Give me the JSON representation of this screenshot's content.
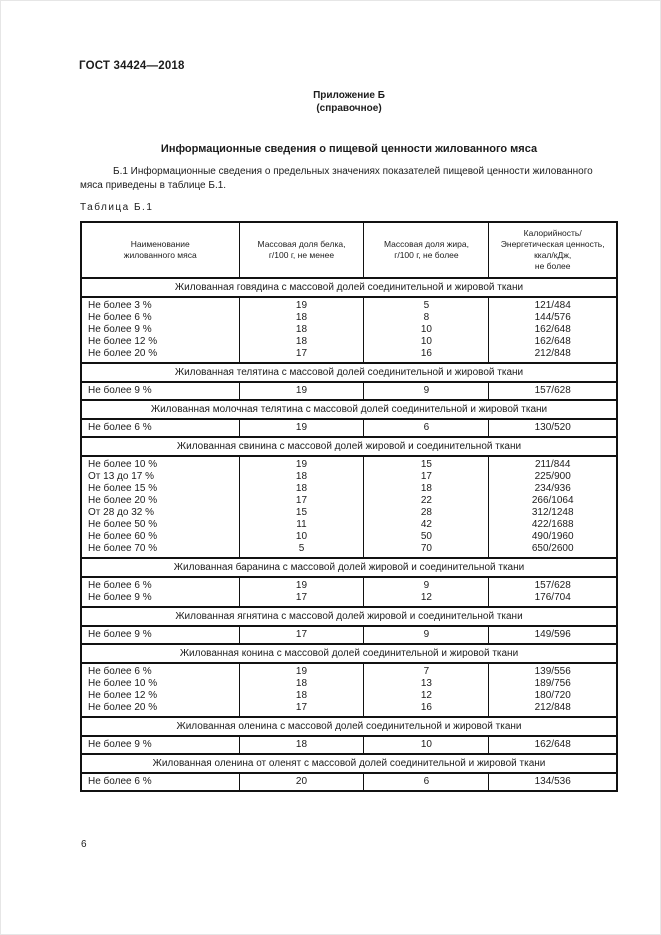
{
  "page": {
    "doc_code": "ГОСТ 34424—2018",
    "page_number": "6"
  },
  "appendix": {
    "title": "Приложение Б",
    "subtitle": "(справочное)"
  },
  "heading": "Информационные сведения о пищевой ценности жилованного мяса",
  "paragraph": "Б.1 Информационные сведения о предельных значениях показателей пищевой ценности жилованного мяса приведены в таблице Б.1.",
  "table": {
    "label": "Таблица Б.1",
    "columns": [
      "Наименование\nжилованного мяса",
      "Массовая доля белка,\nг/100 г, не менее",
      "Массовая доля жира,\nг/100 г, не более",
      "Калорийность/\nЭнергетическая ценность,\nккал/кДж,\nне более"
    ],
    "sections": [
      {
        "title": "Жилованная говядина с массовой долей соединительной и жировой ткани",
        "rows": [
          [
            "Не более 3 %",
            "19",
            "5",
            "121/484"
          ],
          [
            "Не более 6 %",
            "18",
            "8",
            "144/576"
          ],
          [
            "Не более 9 %",
            "18",
            "10",
            "162/648"
          ],
          [
            "Не более 12 %",
            "18",
            "10",
            "162/648"
          ],
          [
            "Не более 20 %",
            "17",
            "16",
            "212/848"
          ]
        ]
      },
      {
        "title": "Жилованная телятина с массовой долей соединительной и жировой ткани",
        "rows": [
          [
            "Не более 9 %",
            "19",
            "9",
            "157/628"
          ]
        ]
      },
      {
        "title": "Жилованная молочная телятина с массовой долей соединительной и жировой ткани",
        "rows": [
          [
            "Не более 6 %",
            "19",
            "6",
            "130/520"
          ]
        ]
      },
      {
        "title": "Жилованная свинина с массовой долей жировой и соединительной ткани",
        "rows": [
          [
            "Не более 10 %",
            "19",
            "15",
            "211/844"
          ],
          [
            "От 13 до 17 %",
            "18",
            "17",
            "225/900"
          ],
          [
            "Не более 15 %",
            "18",
            "18",
            "234/936"
          ],
          [
            "Не более 20 %",
            "17",
            "22",
            "266/1064"
          ],
          [
            "От 28 до 32 %",
            "15",
            "28",
            "312/1248"
          ],
          [
            "Не более 50 %",
            "11",
            "42",
            "422/1688"
          ],
          [
            "Не более 60 %",
            "10",
            "50",
            "490/1960"
          ],
          [
            "Не более 70 %",
            "5",
            "70",
            "650/2600"
          ]
        ]
      },
      {
        "title": "Жилованная баранина с массовой долей жировой и соединительной ткани",
        "rows": [
          [
            "Не более 6 %",
            "19",
            "9",
            "157/628"
          ],
          [
            "Не более 9 %",
            "17",
            "12",
            "176/704"
          ]
        ]
      },
      {
        "title": "Жилованная ягнятина с массовой долей жировой и соединительной ткани",
        "rows": [
          [
            "Не более 9 %",
            "17",
            "9",
            "149/596"
          ]
        ]
      },
      {
        "title": "Жилованная конина с массовой долей соединительной и жировой ткани",
        "rows": [
          [
            "Не более 6 %",
            "19",
            "7",
            "139/556"
          ],
          [
            "Не более 10 %",
            "18",
            "13",
            "189/756"
          ],
          [
            "Не более 12 %",
            "18",
            "12",
            "180/720"
          ],
          [
            "Не более 20 %",
            "17",
            "16",
            "212/848"
          ]
        ]
      },
      {
        "title": "Жилованная оленина с массовой долей соединительной и жировой ткани",
        "rows": [
          [
            "Не более 9 %",
            "18",
            "10",
            "162/648"
          ]
        ]
      },
      {
        "title": "Жилованная оленина от оленят с массовой долей соединительной и жировой ткани",
        "rows": [
          [
            "Не более 6 %",
            "20",
            "6",
            "134/536"
          ]
        ]
      }
    ]
  }
}
